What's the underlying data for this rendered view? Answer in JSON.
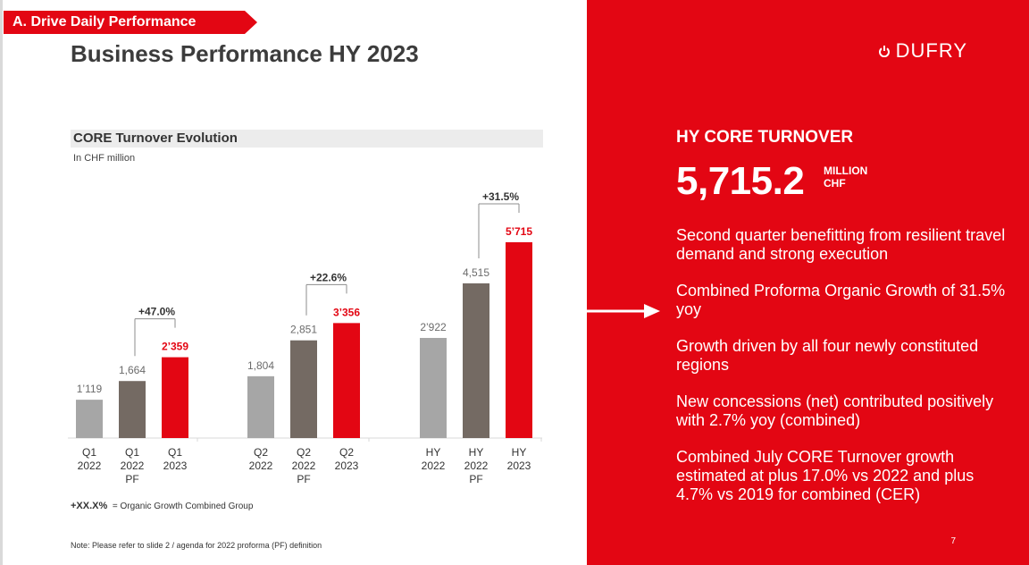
{
  "header": {
    "section_tag": "A. Drive Daily Performance",
    "title": "Business Performance HY 2023"
  },
  "chart_data": {
    "type": "bar",
    "title": "CORE Turnover Evolution",
    "subtitle": "In CHF million",
    "groups": [
      {
        "bars": [
          {
            "label": "Q1\n2022",
            "value": 1119,
            "value_label": "1’119",
            "color": "#a6a6a6"
          },
          {
            "label": "Q1\n2022\nPF",
            "value": 1664,
            "value_label": "1,664",
            "color": "#746a63"
          },
          {
            "label": "Q1\n2023",
            "value": 2359,
            "value_label": "2’359",
            "color": "#e30613"
          }
        ],
        "growth": "+47.0%"
      },
      {
        "bars": [
          {
            "label": "Q2\n2022",
            "value": 1804,
            "value_label": "1,804",
            "color": "#a6a6a6"
          },
          {
            "label": "Q2\n2022\nPF",
            "value": 2851,
            "value_label": "2,851",
            "color": "#746a63"
          },
          {
            "label": "Q2\n2023",
            "value": 3356,
            "value_label": "3’356",
            "color": "#e30613"
          }
        ],
        "growth": "+22.6%"
      },
      {
        "bars": [
          {
            "label": "HY\n2022",
            "value": 2922,
            "value_label": "2’922",
            "color": "#a6a6a6"
          },
          {
            "label": "HY\n2022\nPF",
            "value": 4515,
            "value_label": "4,515",
            "color": "#746a63"
          },
          {
            "label": "HY\n2023",
            "value": 5715,
            "value_label": "5’715",
            "color": "#e30613"
          }
        ],
        "growth": "+31.5%"
      }
    ],
    "colors": {
      "prior_year": "#a6a6a6",
      "proforma": "#746a63",
      "current": "#e30613"
    }
  },
  "legend": {
    "marker": "+XX.X%",
    "text": "= Organic Growth Combined Group"
  },
  "note": "Note: Please refer to slide 2 / agenda  for 2022 proforma (PF) definition",
  "panel": {
    "brand": "DUFRY",
    "brand_icon": "power-symbol-icon",
    "kpi_heading": "HY CORE TURNOVER",
    "kpi_value": "5,715.2",
    "kpi_unit_line1": "MILLION",
    "kpi_unit_line2": "CHF",
    "bullets": [
      "Second quarter benefitting from resilient travel demand and strong execution",
      "Combined Proforma Organic Growth of 31.5% yoy",
      "Growth driven by all four newly constituted regions",
      "New concessions (net) contributed positively with 2.7% yoy (combined)",
      "Combined July CORE Turnover growth estimated at plus 17.0% vs 2022 and plus 4.7% vs 2019 for combined (CER)"
    ],
    "page_number": "7"
  },
  "colors": {
    "accent": "#e30613",
    "title_text": "#3c3c3c"
  }
}
